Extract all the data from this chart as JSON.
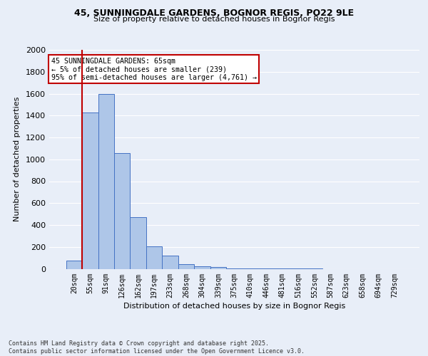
{
  "title1": "45, SUNNINGDALE GARDENS, BOGNOR REGIS, PO22 9LE",
  "title2": "Size of property relative to detached houses in Bognor Regis",
  "xlabel": "Distribution of detached houses by size in Bognor Regis",
  "ylabel": "Number of detached properties",
  "categories": [
    "20sqm",
    "55sqm",
    "91sqm",
    "126sqm",
    "162sqm",
    "197sqm",
    "233sqm",
    "268sqm",
    "304sqm",
    "339sqm",
    "375sqm",
    "410sqm",
    "446sqm",
    "481sqm",
    "516sqm",
    "552sqm",
    "587sqm",
    "623sqm",
    "658sqm",
    "694sqm",
    "729sqm"
  ],
  "values": [
    75,
    1430,
    1600,
    1060,
    470,
    205,
    120,
    45,
    25,
    15,
    5,
    3,
    2,
    1,
    1,
    1,
    0,
    0,
    0,
    0,
    0
  ],
  "bar_color": "#aec6e8",
  "bar_edge_color": "#4472c4",
  "vline_color": "#c00000",
  "annotation_text": "45 SUNNINGDALE GARDENS: 65sqm\n← 5% of detached houses are smaller (239)\n95% of semi-detached houses are larger (4,761) →",
  "annotation_box_color": "#ffffff",
  "annotation_border_color": "#c00000",
  "ylim": [
    0,
    2000
  ],
  "yticks": [
    0,
    200,
    400,
    600,
    800,
    1000,
    1200,
    1400,
    1600,
    1800,
    2000
  ],
  "bg_color": "#e8eef8",
  "grid_color": "#ffffff",
  "footer1": "Contains HM Land Registry data © Crown copyright and database right 2025.",
  "footer2": "Contains public sector information licensed under the Open Government Licence v3.0."
}
